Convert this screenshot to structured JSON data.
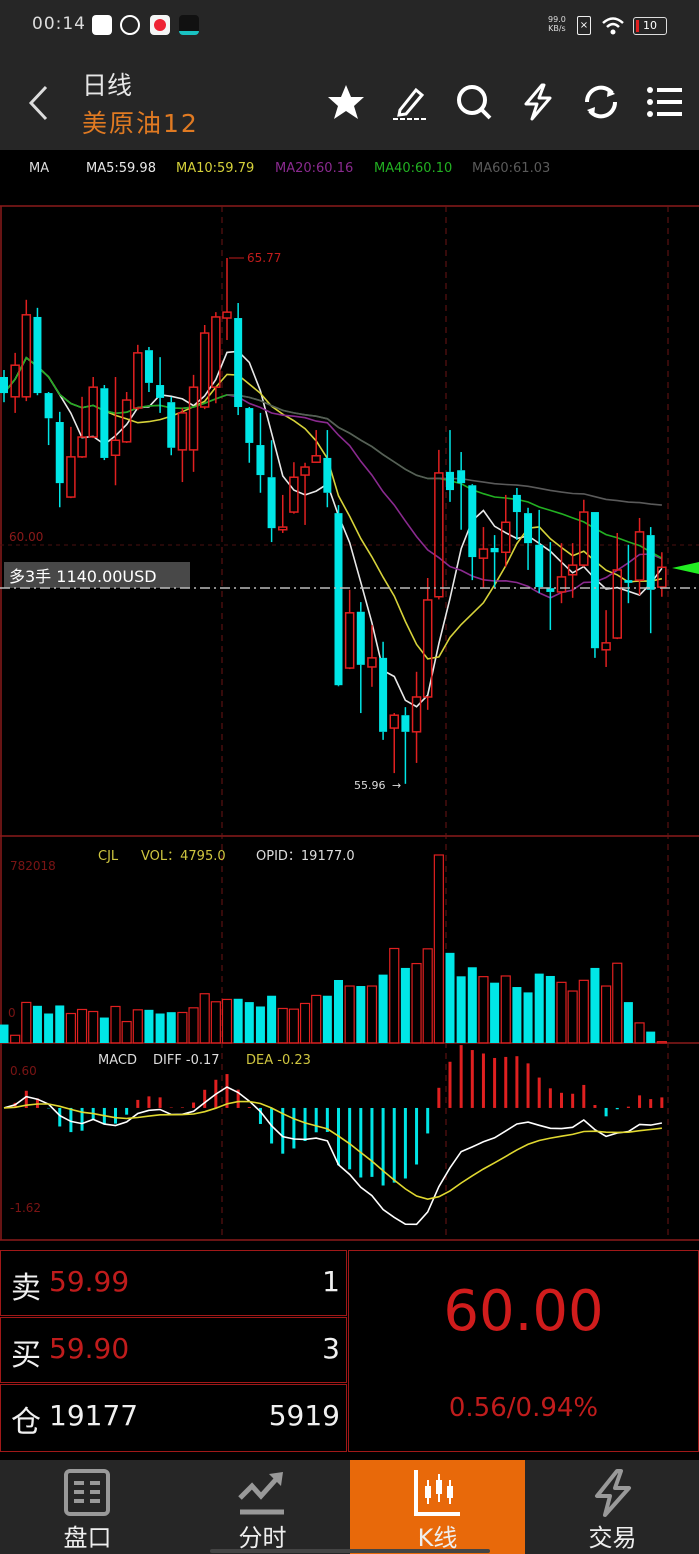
{
  "status_bar": {
    "time": "00:14",
    "net_speed": "99.0",
    "net_unit": "KB/s",
    "battery": "10"
  },
  "header": {
    "period": "日线",
    "symbol": "美原油12"
  },
  "ma_legend": {
    "label": "MA",
    "items": [
      {
        "label": "MA5:59.98",
        "color": "#e8e8e8"
      },
      {
        "label": "MA10:59.79",
        "color": "#d6d23a"
      },
      {
        "label": "MA20:60.16",
        "color": "#8a2a8f"
      },
      {
        "label": "MA40:60.10",
        "color": "#22b022"
      },
      {
        "label": "MA60:61.03",
        "color": "#5a5a5a"
      }
    ]
  },
  "colors": {
    "up": "#e02020",
    "down": "#00e6e6",
    "grid": "#8b1a1a",
    "accent": "#e8690a"
  },
  "price_chart": {
    "high_label": "65.77",
    "low_label": "55.96",
    "level_label": "60.00",
    "position_label": "多3手  1140.00USD",
    "candles_ohlc": [
      [
        63.55,
        63.68,
        63.08,
        63.25
      ],
      [
        63.18,
        64.0,
        62.88,
        63.77
      ],
      [
        63.18,
        64.99,
        63.1,
        64.71
      ],
      [
        64.67,
        64.84,
        63.21,
        63.25
      ],
      [
        63.25,
        63.27,
        62.28,
        62.78
      ],
      [
        62.71,
        62.9,
        61.12,
        61.57
      ],
      [
        61.31,
        62.62,
        61.29,
        62.06
      ],
      [
        62.06,
        63.18,
        62.04,
        62.43
      ],
      [
        62.43,
        63.55,
        62.41,
        63.36
      ],
      [
        63.34,
        63.4,
        62.0,
        62.04
      ],
      [
        62.09,
        63.55,
        61.53,
        62.37
      ],
      [
        62.34,
        63.27,
        62.32,
        63.12
      ],
      [
        62.97,
        64.15,
        62.93,
        64.0
      ],
      [
        64.05,
        64.11,
        63.27,
        63.44
      ],
      [
        63.4,
        63.92,
        62.88,
        63.16
      ],
      [
        63.08,
        63.18,
        62.09,
        62.23
      ],
      [
        62.19,
        62.97,
        61.59,
        62.88
      ],
      [
        62.19,
        63.59,
        61.78,
        63.36
      ],
      [
        62.99,
        64.52,
        62.95,
        64.37
      ],
      [
        63.36,
        64.76,
        63.06,
        64.67
      ],
      [
        64.65,
        65.77,
        64.24,
        64.76
      ],
      [
        64.65,
        64.93,
        62.84,
        62.99
      ],
      [
        62.97,
        62.99,
        61.95,
        62.32
      ],
      [
        62.28,
        62.88,
        61.39,
        61.72
      ],
      [
        61.68,
        62.37,
        60.47,
        60.73
      ],
      [
        60.7,
        61.35,
        60.64,
        60.75
      ],
      [
        61.03,
        61.96,
        61.0,
        61.68
      ],
      [
        61.72,
        61.95,
        60.79,
        61.87
      ],
      [
        61.96,
        62.56,
        61.95,
        62.08
      ],
      [
        62.04,
        62.56,
        61.12,
        61.39
      ],
      [
        61.01,
        61.16,
        57.78,
        57.8
      ],
      [
        58.12,
        59.58,
        58.1,
        59.15
      ],
      [
        59.17,
        59.35,
        57.28,
        58.18
      ],
      [
        58.14,
        58.92,
        57.77,
        58.31
      ],
      [
        58.31,
        58.61,
        56.78,
        56.93
      ],
      [
        57.0,
        57.28,
        56.16,
        57.24
      ],
      [
        57.24,
        57.39,
        55.96,
        56.93
      ],
      [
        56.93,
        58.05,
        56.35,
        57.58
      ],
      [
        57.58,
        59.8,
        57.34,
        59.39
      ],
      [
        59.45,
        62.19,
        59.4,
        61.76
      ],
      [
        61.78,
        62.56,
        61.22,
        61.44
      ],
      [
        61.81,
        62.15,
        60.7,
        61.57
      ],
      [
        61.53,
        61.55,
        59.76,
        60.19
      ],
      [
        60.17,
        60.75,
        59.61,
        60.34
      ],
      [
        60.36,
        60.6,
        59.63,
        60.28
      ],
      [
        60.28,
        61.35,
        60.01,
        60.84
      ],
      [
        61.35,
        61.48,
        60.51,
        61.03
      ],
      [
        61.01,
        61.11,
        59.95,
        60.45
      ],
      [
        60.42,
        61.07,
        59.52,
        59.63
      ],
      [
        59.61,
        60.47,
        58.83,
        59.54
      ],
      [
        59.54,
        60.45,
        59.33,
        59.82
      ],
      [
        59.86,
        60.45,
        59.43,
        60.04
      ],
      [
        60.04,
        61.26,
        60.01,
        61.03
      ],
      [
        61.03,
        61.03,
        58.31,
        58.49
      ],
      [
        58.46,
        59.2,
        58.14,
        58.59
      ],
      [
        58.68,
        60.64,
        58.66,
        59.95
      ],
      [
        59.76,
        60.42,
        59.33,
        59.71
      ],
      [
        59.76,
        60.92,
        59.48,
        60.66
      ],
      [
        60.6,
        60.75,
        58.77,
        59.58
      ],
      [
        59.63,
        60.28,
        59.45,
        60.0
      ]
    ]
  },
  "volume_chart": {
    "name": "CJL",
    "vol_label": "VOL：4795.0",
    "opid_label": "OPID：19177.0",
    "max_label": "782018",
    "zero_label": "0",
    "volumes": [
      76700,
      32100,
      168700,
      154700,
      122700,
      156100,
      122700,
      139400,
      131000,
      105900,
      151900,
      89200,
      138000,
      138000,
      122700,
      128200,
      126900,
      146400,
      204900,
      171500,
      181200,
      184000,
      170100,
      151900,
      196600,
      143600,
      140800,
      164500,
      197900,
      196600,
      262100,
      237000,
      237000,
      237000,
      284400,
      393100,
      312300,
      330400,
      391700,
      782018,
      375000,
      277400,
      315000,
      276000,
      250900,
      278800,
      232800,
      210500,
      288600,
      278800,
      252300,
      216100,
      260700,
      312300,
      237000,
      331800,
      170100,
      83600,
      47400,
      5600
    ]
  },
  "macd_chart": {
    "name": "MACD",
    "diff_label": "DIFF -0.17",
    "dea_label": "DEA -0.23",
    "max_label": "0.60",
    "min_label": "-1.62",
    "range": [
      -1.62,
      0.6
    ]
  },
  "order_book": {
    "ask": {
      "label": "卖",
      "price": "59.99",
      "qty": "1"
    },
    "bid": {
      "label": "买",
      "price": "59.90",
      "qty": "3"
    },
    "open_interest": {
      "label": "仓",
      "value": "19177",
      "qty": "5919"
    },
    "last_price": "60.00",
    "change": "0.56/0.94%"
  },
  "nav": {
    "tabs": [
      {
        "label": "盘口",
        "icon": "order-book-icon"
      },
      {
        "label": "分时",
        "icon": "trend-icon"
      },
      {
        "label": "K线",
        "icon": "candlestick-icon",
        "active": true
      },
      {
        "label": "交易",
        "icon": "lightning-icon"
      }
    ]
  }
}
